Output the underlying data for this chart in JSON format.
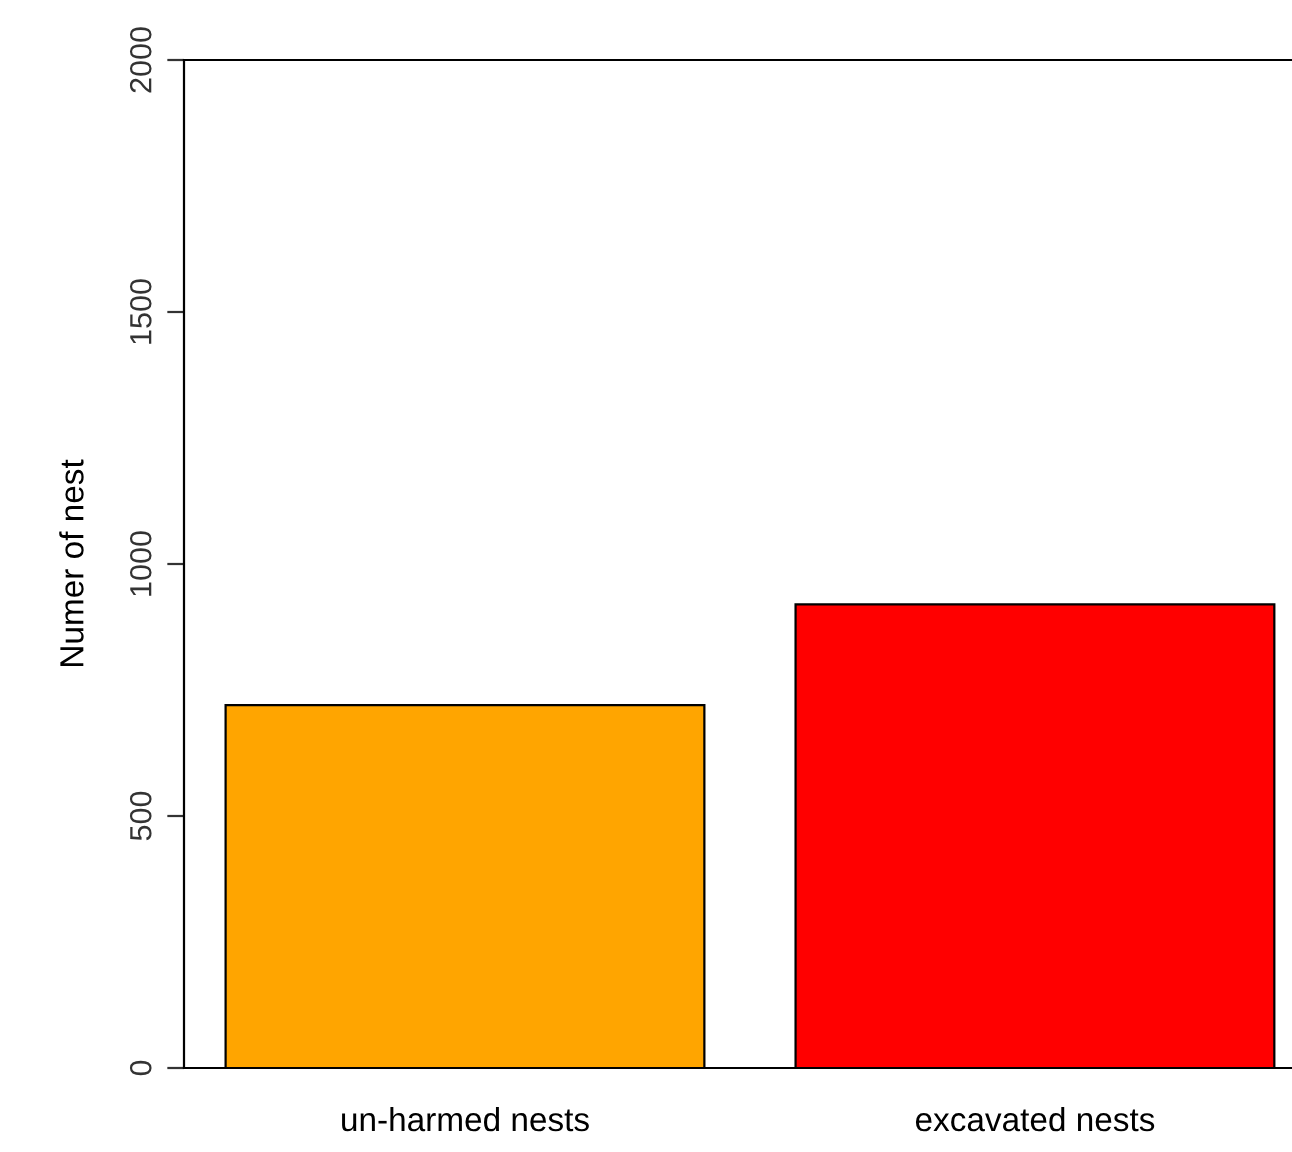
{
  "chart_data": {
    "type": "bar",
    "ylabel": "Numer of nest",
    "categories": [
      "un-harmed nests",
      "excavated nests"
    ],
    "values": [
      720,
      920
    ],
    "colors": [
      "#ffa500",
      "#ff0000"
    ],
    "ylim": [
      0,
      2000
    ],
    "yticks": [
      0,
      500,
      1000,
      1500,
      2000
    ],
    "grid": false,
    "legend": false
  }
}
